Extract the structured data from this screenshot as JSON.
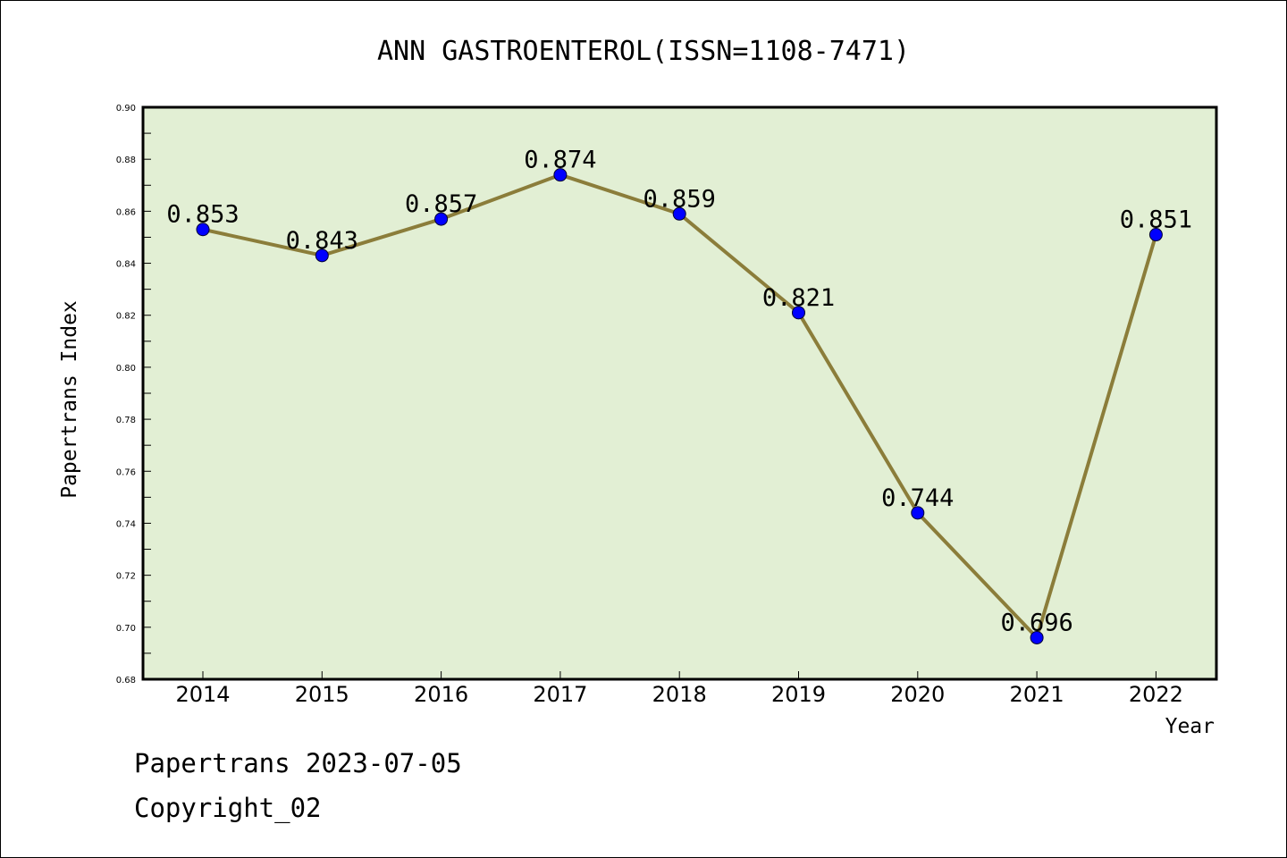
{
  "chart_data": {
    "type": "line",
    "title": "ANN GASTROENTEROL(ISSN=1108-7471)",
    "xlabel": "Year",
    "ylabel": "Papertrans Index",
    "categories": [
      "2014",
      "2015",
      "2016",
      "2017",
      "2018",
      "2019",
      "2020",
      "2021",
      "2022"
    ],
    "values": [
      0.853,
      0.843,
      0.857,
      0.874,
      0.859,
      0.821,
      0.744,
      0.696,
      0.851
    ],
    "data_labels": [
      "0.853",
      "0.843",
      "0.857",
      "0.874",
      "0.859",
      "0.821",
      "0.744",
      "0.696",
      "0.851"
    ],
    "ylim": [
      0.68,
      0.9
    ],
    "yticks": [
      "0.68",
      "0.70",
      "0.72",
      "0.74",
      "0.76",
      "0.78",
      "0.80",
      "0.82",
      "0.84",
      "0.86",
      "0.88",
      "0.90"
    ],
    "grid": false,
    "colors": {
      "plot_background": "#e2efd4",
      "line": "#8b7d3a",
      "marker": "#0000ff"
    }
  },
  "footer": {
    "line1": "Papertrans 2023-07-05",
    "line2": "Copyright_02"
  }
}
